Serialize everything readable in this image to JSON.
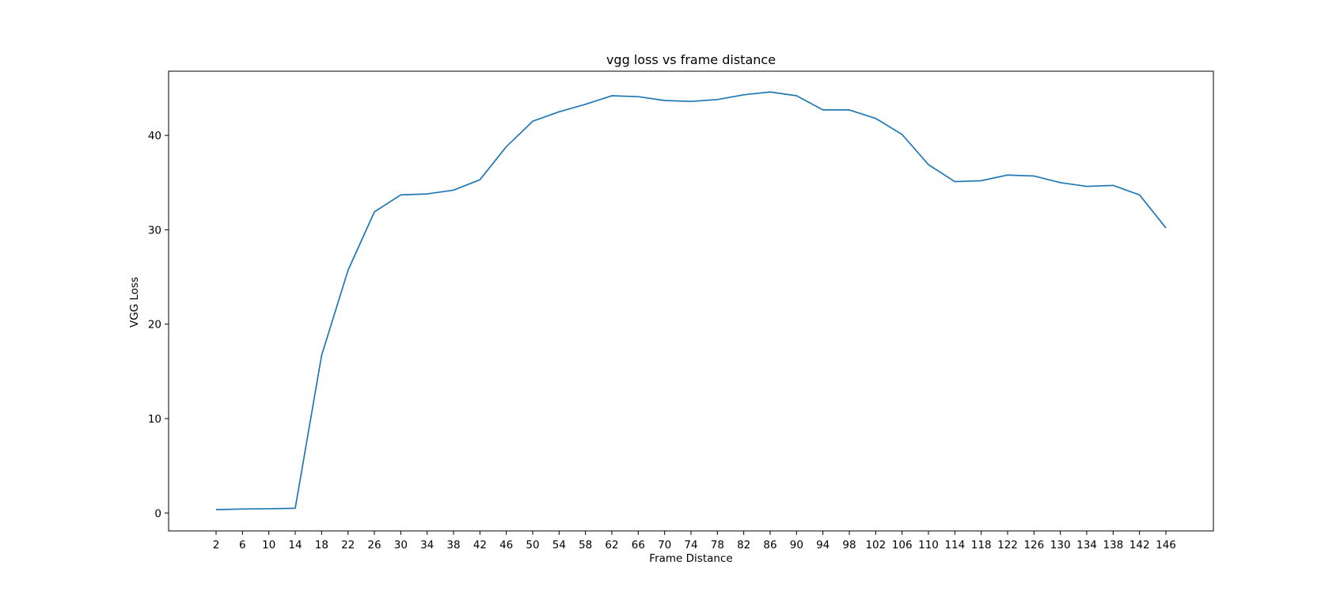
{
  "chart_data": {
    "type": "line",
    "title": "vgg loss vs frame distance",
    "xlabel": "Frame Distance",
    "ylabel": "VGG Loss",
    "x": [
      2,
      6,
      10,
      14,
      18,
      22,
      26,
      30,
      34,
      38,
      42,
      46,
      50,
      54,
      58,
      62,
      66,
      70,
      74,
      78,
      82,
      86,
      90,
      94,
      98,
      102,
      106,
      110,
      114,
      118,
      122,
      126,
      130,
      134,
      138,
      142,
      146
    ],
    "xticks": [
      2,
      6,
      10,
      14,
      18,
      22,
      26,
      30,
      34,
      38,
      42,
      46,
      50,
      54,
      58,
      62,
      66,
      70,
      74,
      78,
      82,
      86,
      90,
      94,
      98,
      102,
      106,
      110,
      114,
      118,
      122,
      126,
      130,
      134,
      138,
      142,
      146
    ],
    "yticks": [
      0,
      10,
      20,
      30,
      40
    ],
    "xlim": [
      -5.2,
      153.2
    ],
    "ylim": [
      -1.9,
      46.8
    ],
    "grid": false,
    "legend": "none",
    "series": [
      {
        "values": [
          0.35,
          0.42,
          0.45,
          0.5,
          16.7,
          25.7,
          31.9,
          33.7,
          33.8,
          34.2,
          35.3,
          38.8,
          41.5,
          42.5,
          43.3,
          44.2,
          44.1,
          43.7,
          43.6,
          43.8,
          44.3,
          44.6,
          44.2,
          42.7,
          42.7,
          41.8,
          40.1,
          36.9,
          35.1,
          35.2,
          35.8,
          35.7,
          35.0,
          34.6,
          34.7,
          33.7,
          30.2
        ],
        "color": "#1f77b4"
      }
    ]
  }
}
